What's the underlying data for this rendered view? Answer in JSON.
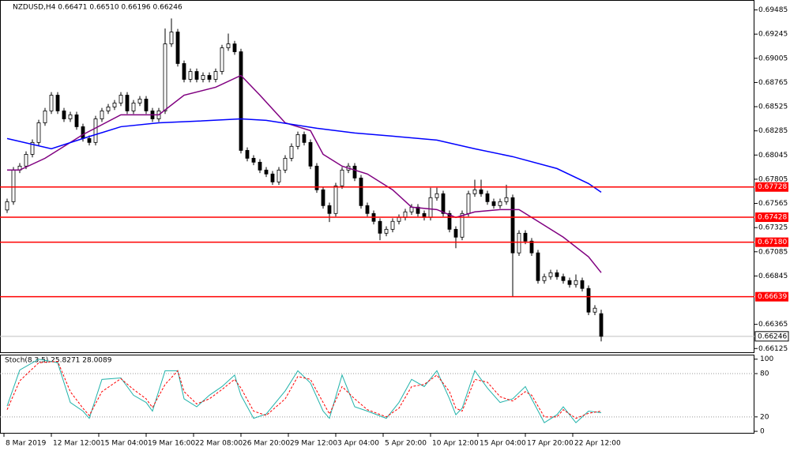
{
  "chart_data": {
    "type": "candlestick",
    "title": "NZDUSD,H4 0.66471 0.66510 0.66196 0.66246",
    "xlim": [
      -1.125,
      118.25
    ],
    "xticks": [
      {
        "value": -0.5,
        "label": "8 Mar 2019"
      },
      {
        "value": 7,
        "label": "12 Mar 12:00"
      },
      {
        "value": 14.5,
        "label": "15 Mar 04:00"
      },
      {
        "value": 22,
        "label": "19 Mar 16:00"
      },
      {
        "value": 29.5,
        "label": "22 Mar 08:00"
      },
      {
        "value": 37,
        "label": "26 Mar 20:00"
      },
      {
        "value": 44.5,
        "label": "29 Mar 12:00"
      },
      {
        "value": 52,
        "label": "3 Apr 04:00"
      },
      {
        "value": 59.5,
        "label": "5 Apr 20:00"
      },
      {
        "value": 67,
        "label": "10 Apr 12:00"
      },
      {
        "value": 74.5,
        "label": "15 Apr 04:00"
      },
      {
        "value": 82,
        "label": "17 Apr 20:00"
      },
      {
        "value": 89.5,
        "label": "22 Apr 12:00"
      }
    ],
    "ylim": [
      0.6608,
      0.6956
    ],
    "yticks": [
      0.69485,
      0.69245,
      0.69005,
      0.68765,
      0.68525,
      0.68285,
      0.68045,
      0.67805,
      0.67565,
      0.67325,
      0.67085,
      0.66845,
      0.66365,
      0.66125
    ],
    "open": [
      0.675,
      0.67582,
      0.67896,
      0.67935,
      0.68052,
      0.6817,
      0.68365,
      0.68483,
      0.68639,
      0.68483,
      0.68404,
      0.68444,
      0.68326,
      0.68209,
      0.6817,
      0.68404,
      0.68483,
      0.68522,
      0.68561,
      0.68639,
      0.68483,
      0.68561,
      0.686,
      0.68483,
      0.68404,
      0.68483,
      0.69148,
      0.69266,
      0.68953,
      0.68796,
      0.68874,
      0.68796,
      0.68835,
      0.68796,
      0.68874,
      0.69109,
      0.69148,
      0.6907,
      0.68091,
      0.68013,
      0.67974,
      0.67896,
      0.67857,
      0.67778,
      0.67896,
      0.68013,
      0.68131,
      0.68248,
      0.6817,
      0.67935,
      0.677,
      0.67543,
      0.67465,
      0.67739,
      0.67896,
      0.67935,
      0.67817,
      0.67543,
      0.67465,
      0.67387,
      0.67269,
      0.67308,
      0.67387,
      0.67426,
      0.67481,
      0.67528,
      0.67465,
      0.67426,
      0.67622,
      0.67661,
      0.67465,
      0.67308,
      0.6723,
      0.67465,
      0.67661,
      0.677,
      0.67661,
      0.67582,
      0.67543,
      0.67582,
      0.67622,
      0.67074,
      0.67269,
      0.67191,
      0.67074,
      0.66799,
      0.66838,
      0.66877,
      0.66838,
      0.66799,
      0.6676,
      0.66799,
      0.66721,
      0.66486,
      0.66471
    ],
    "high": [
      0.67612,
      0.67926,
      0.67965,
      0.68082,
      0.682,
      0.68395,
      0.68513,
      0.68669,
      0.68669,
      0.68513,
      0.68474,
      0.68474,
      0.68356,
      0.68239,
      0.68434,
      0.68513,
      0.68552,
      0.68591,
      0.68669,
      0.68669,
      0.68591,
      0.6863,
      0.6863,
      0.68513,
      0.68513,
      0.693,
      0.694,
      0.69296,
      0.68983,
      0.68904,
      0.68904,
      0.68865,
      0.68865,
      0.68904,
      0.69139,
      0.6925,
      0.69178,
      0.691,
      0.68121,
      0.68043,
      0.68004,
      0.67926,
      0.67887,
      0.67926,
      0.68043,
      0.68161,
      0.68278,
      0.68278,
      0.682,
      0.67965,
      0.6773,
      0.67573,
      0.67769,
      0.67926,
      0.67965,
      0.67965,
      0.67847,
      0.67573,
      0.67495,
      0.67417,
      0.67338,
      0.67417,
      0.67456,
      0.67511,
      0.67558,
      0.67558,
      0.67495,
      0.6772,
      0.6772,
      0.67691,
      0.67495,
      0.67338,
      0.67495,
      0.67691,
      0.678,
      0.678,
      0.67691,
      0.67612,
      0.67612,
      0.6775,
      0.67652,
      0.67299,
      0.67299,
      0.67221,
      0.67104,
      0.66868,
      0.66907,
      0.66907,
      0.66868,
      0.66829,
      0.6686,
      0.66829,
      0.66751,
      0.66555,
      0.6651
    ],
    "low": [
      0.6747,
      0.67552,
      0.67866,
      0.67905,
      0.68022,
      0.6814,
      0.68335,
      0.68453,
      0.68453,
      0.68374,
      0.68374,
      0.68296,
      0.68179,
      0.6814,
      0.6814,
      0.68374,
      0.68453,
      0.68492,
      0.68531,
      0.68453,
      0.68453,
      0.68531,
      0.68453,
      0.68374,
      0.68374,
      0.68453,
      0.69118,
      0.68923,
      0.68766,
      0.68766,
      0.68766,
      0.68766,
      0.68766,
      0.68766,
      0.68844,
      0.69079,
      0.6904,
      0.68061,
      0.67983,
      0.67944,
      0.67866,
      0.67827,
      0.67748,
      0.67748,
      0.67866,
      0.67983,
      0.68101,
      0.6814,
      0.67905,
      0.6767,
      0.67513,
      0.6738,
      0.67435,
      0.67709,
      0.67866,
      0.67787,
      0.67513,
      0.67435,
      0.67357,
      0.672,
      0.67239,
      0.67278,
      0.67357,
      0.67396,
      0.67451,
      0.67435,
      0.67396,
      0.67396,
      0.67592,
      0.67435,
      0.67278,
      0.6712,
      0.672,
      0.67435,
      0.67631,
      0.67631,
      0.67552,
      0.67513,
      0.67513,
      0.67552,
      0.66643,
      0.67044,
      0.67161,
      0.67044,
      0.66769,
      0.66769,
      0.66808,
      0.66808,
      0.66769,
      0.6673,
      0.6673,
      0.66691,
      0.66456,
      0.66456,
      0.66196
    ],
    "close": [
      0.67582,
      0.67896,
      0.67935,
      0.68052,
      0.6817,
      0.68365,
      0.68483,
      0.68639,
      0.68483,
      0.68404,
      0.68444,
      0.68326,
      0.68209,
      0.6817,
      0.68404,
      0.68483,
      0.68522,
      0.68561,
      0.68639,
      0.68483,
      0.68561,
      0.686,
      0.68483,
      0.68404,
      0.68483,
      0.69148,
      0.69266,
      0.68953,
      0.68796,
      0.68874,
      0.68796,
      0.68835,
      0.68796,
      0.68874,
      0.69109,
      0.69148,
      0.6907,
      0.68091,
      0.68013,
      0.67974,
      0.67896,
      0.67857,
      0.67778,
      0.67896,
      0.68013,
      0.68131,
      0.68248,
      0.6817,
      0.67935,
      0.677,
      0.67543,
      0.67465,
      0.67739,
      0.67896,
      0.67935,
      0.67817,
      0.67543,
      0.67465,
      0.67387,
      0.67269,
      0.67308,
      0.67387,
      0.67426,
      0.67481,
      0.67528,
      0.67465,
      0.67426,
      0.67622,
      0.67661,
      0.67465,
      0.67308,
      0.6723,
      0.67465,
      0.67661,
      0.677,
      0.67661,
      0.67582,
      0.67543,
      0.67582,
      0.67622,
      0.67074,
      0.67269,
      0.67191,
      0.67074,
      0.66799,
      0.66838,
      0.66877,
      0.66838,
      0.66799,
      0.6676,
      0.66799,
      0.66721,
      0.66486,
      0.66525,
      0.66246
    ],
    "moving_averages": [
      {
        "color": "#800080",
        "x": [
          0,
          2,
          6,
          12,
          18,
          24,
          28,
          33,
          37,
          40,
          44,
          48,
          50,
          53,
          57,
          61,
          64,
          68,
          71,
          74,
          78,
          81,
          84,
          88,
          92,
          94
        ],
        "values": [
          0.67896,
          0.67896,
          0.68013,
          0.68248,
          0.68444,
          0.68444,
          0.68639,
          0.68718,
          0.68835,
          0.68639,
          0.68365,
          0.68287,
          0.68052,
          0.67935,
          0.67857,
          0.677,
          0.67528,
          0.67504,
          0.67426,
          0.67481,
          0.67504,
          0.67504,
          0.67387,
          0.6723,
          0.67035,
          0.66878
        ]
      },
      {
        "color": "#0000ff",
        "x": [
          0,
          7,
          12,
          18,
          24,
          30,
          37,
          41,
          49,
          55,
          61,
          68,
          74,
          80,
          87,
          92,
          94
        ],
        "values": [
          0.68209,
          0.68107,
          0.68209,
          0.68326,
          0.68365,
          0.68381,
          0.68404,
          0.68389,
          0.68311,
          0.68264,
          0.68232,
          0.68193,
          0.68107,
          0.68029,
          0.67911,
          0.67762,
          0.67676
        ]
      }
    ],
    "levels": [
      {
        "value": 0.67728,
        "label": "0.67728"
      },
      {
        "value": 0.67428,
        "label": "0.67428"
      },
      {
        "value": 0.6718,
        "label": "0.67180"
      },
      {
        "value": 0.66639,
        "label": "0.66639"
      }
    ],
    "level_color": "#ff0000",
    "current_price": 0.66246,
    "stochastic": {
      "title": "Stoch(8,3,5) 25.8271 28.0089",
      "ylim": [
        -1,
        103
      ],
      "yticks": [
        100,
        80,
        20,
        0
      ],
      "levels": [
        80,
        20
      ],
      "series": [
        {
          "color": "#20b2aa",
          "x": [
            0,
            2,
            5,
            8,
            10,
            12,
            13,
            15,
            18,
            20,
            22,
            23,
            25,
            27,
            28,
            30,
            32,
            34,
            36,
            37,
            39,
            41,
            44,
            46,
            48,
            50,
            51,
            53,
            55,
            57,
            60,
            62,
            64,
            66,
            68,
            70,
            71,
            72,
            74,
            76,
            78,
            80,
            82,
            83,
            85,
            87,
            88,
            90,
            92,
            94
          ],
          "values": [
            35,
            85,
            100,
            95,
            40,
            28,
            18,
            72,
            74,
            50,
            40,
            28,
            84,
            84,
            45,
            34,
            50,
            62,
            78,
            50,
            18,
            24,
            56,
            84,
            67,
            28,
            18,
            78,
            34,
            28,
            18,
            40,
            72,
            62,
            84,
            45,
            23,
            32,
            84,
            60,
            40,
            45,
            62,
            45,
            12,
            23,
            34,
            12,
            28,
            25.8271
          ]
        },
        {
          "color": "#ff0000",
          "x": [
            0,
            2,
            5,
            8,
            10,
            12,
            13,
            15,
            18,
            20,
            22,
            23,
            25,
            27,
            28,
            30,
            32,
            34,
            36,
            37,
            39,
            41,
            44,
            46,
            48,
            50,
            51,
            53,
            55,
            57,
            60,
            62,
            64,
            66,
            68,
            70,
            71,
            72,
            74,
            76,
            78,
            80,
            82,
            83,
            85,
            87,
            88,
            90,
            92,
            94
          ],
          "values": [
            30,
            70,
            95,
            97,
            55,
            32,
            22,
            55,
            73,
            58,
            45,
            33,
            65,
            84,
            55,
            38,
            45,
            58,
            72,
            60,
            28,
            22,
            45,
            76,
            72,
            40,
            24,
            62,
            45,
            30,
            20,
            32,
            62,
            65,
            78,
            55,
            32,
            28,
            72,
            68,
            48,
            42,
            55,
            50,
            20,
            20,
            30,
            18,
            25,
            28.0089
          ]
        }
      ]
    }
  }
}
